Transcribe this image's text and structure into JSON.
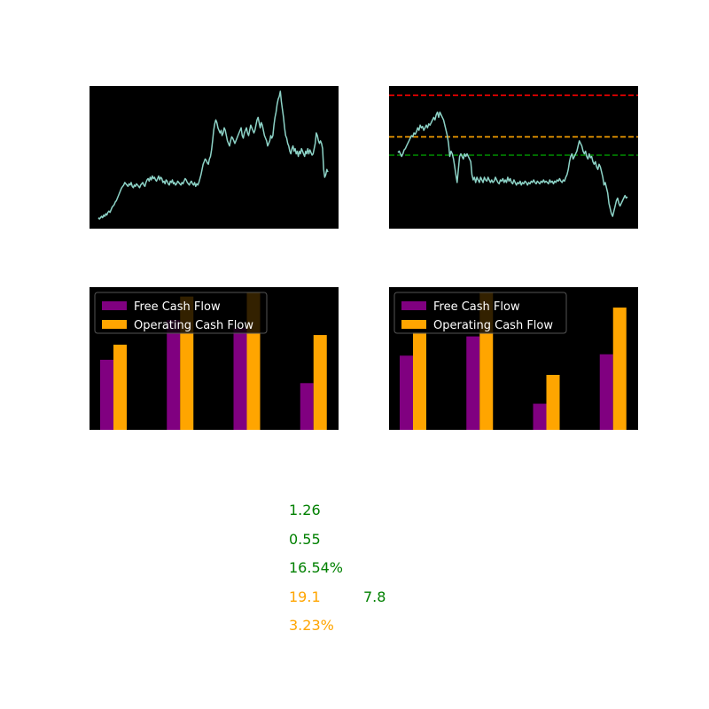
{
  "colors": {
    "panel_background": "#000000",
    "price_line": "#8dd3c7",
    "free_cash_flow": "#800080",
    "operating_cash_flow": "#ffa500",
    "ref_red": "#ff0000",
    "ref_orange": "#ffa500",
    "ref_green": "#008000",
    "good": "#008000",
    "warn": "#ffa500"
  },
  "chart_data": [
    {
      "type": "line",
      "name": "price-history",
      "title": "",
      "xlabel": "",
      "ylabel": "",
      "ylim": [
        0,
        100
      ],
      "grid": false,
      "values": [
        3,
        2,
        3,
        4,
        3,
        5,
        4,
        6,
        5,
        7,
        8,
        7,
        9,
        11,
        12,
        13,
        15,
        16,
        18,
        20,
        22,
        24,
        26,
        27,
        28,
        30,
        29,
        28,
        27,
        29,
        28,
        30,
        27,
        26,
        28,
        27,
        29,
        28,
        27,
        26,
        28,
        29,
        30,
        28,
        27,
        30,
        32,
        33,
        31,
        34,
        32,
        35,
        33,
        34,
        32,
        31,
        33,
        35,
        32,
        34,
        33,
        30,
        31,
        29,
        32,
        31,
        29,
        28,
        31,
        30,
        32,
        29,
        30,
        28,
        29,
        31,
        30,
        29,
        28,
        30,
        29,
        31,
        33,
        32,
        30,
        29,
        28,
        30,
        31,
        29,
        28,
        30,
        27,
        29,
        28,
        30,
        33,
        36,
        40,
        44,
        46,
        48,
        47,
        45,
        44,
        48,
        50,
        55,
        62,
        70,
        75,
        78,
        76,
        72,
        70,
        68,
        70,
        66,
        68,
        72,
        70,
        66,
        62,
        60,
        58,
        62,
        65,
        64,
        62,
        60,
        62,
        64,
        66,
        68,
        70,
        72,
        66,
        64,
        68,
        70,
        72,
        68,
        66,
        70,
        74,
        72,
        70,
        68,
        70,
        74,
        78,
        80,
        76,
        72,
        76,
        74,
        70,
        66,
        64,
        62,
        58,
        60,
        62,
        66,
        64,
        66,
        74,
        80,
        84,
        90,
        94,
        96,
        100,
        92,
        86,
        80,
        72,
        66,
        64,
        60,
        58,
        54,
        52,
        56,
        58,
        54,
        56,
        52,
        54,
        50,
        54,
        52,
        56,
        54,
        52,
        50,
        54,
        52,
        56,
        52,
        55,
        53,
        51,
        52,
        56,
        60,
        68,
        66,
        62,
        60,
        62,
        60,
        56,
        40,
        34,
        36,
        40,
        38
      ],
      "reference_lines": []
    },
    {
      "type": "line",
      "name": "recent-price-with-levels",
      "title": "",
      "xlabel": "",
      "ylabel": "",
      "ylim": [
        0,
        100
      ],
      "grid": false,
      "values": [
        53,
        54,
        52,
        50,
        52,
        55,
        56,
        58,
        60,
        62,
        64,
        66,
        65,
        68,
        67,
        69,
        72,
        70,
        74,
        72,
        73,
        70,
        72,
        74,
        72,
        75,
        74,
        76,
        78,
        80,
        78,
        82,
        84,
        80,
        84,
        82,
        80,
        78,
        74,
        70,
        66,
        60,
        50,
        54,
        52,
        48,
        42,
        36,
        30,
        40,
        50,
        52,
        50,
        48,
        52,
        50,
        52,
        50,
        48,
        46,
        36,
        32,
        34,
        30,
        34,
        32,
        30,
        34,
        32,
        30,
        34,
        32,
        31,
        34,
        32,
        30,
        32,
        30,
        31,
        34,
        32,
        30,
        29,
        32,
        31,
        33,
        30,
        32,
        30,
        34,
        31,
        33,
        30,
        29,
        32,
        30,
        28,
        30,
        29,
        31,
        28,
        30,
        29,
        31,
        30,
        28,
        30,
        29,
        31,
        30,
        32,
        30,
        29,
        31,
        30,
        29,
        31,
        30,
        32,
        30,
        31,
        30,
        29,
        32,
        30,
        31,
        29,
        31,
        30,
        32,
        31,
        33,
        31,
        30,
        32,
        31,
        34,
        36,
        40,
        46,
        50,
        52,
        48,
        50,
        52,
        54,
        58,
        62,
        60,
        58,
        54,
        52,
        54,
        50,
        48,
        52,
        49,
        50,
        46,
        44,
        46,
        42,
        40,
        44,
        42,
        38,
        34,
        28,
        30,
        26,
        22,
        14,
        10,
        6,
        4,
        8,
        12,
        16,
        18,
        14,
        12,
        14,
        16,
        18,
        20,
        18,
        19
      ],
      "reference_lines": [
        {
          "value": 97,
          "color": "#ff0000",
          "style": "dashed"
        },
        {
          "value": 65,
          "color": "#ffa500",
          "style": "dashed"
        },
        {
          "value": 51,
          "color": "#008000",
          "style": "dashed"
        }
      ]
    },
    {
      "type": "bar",
      "name": "cash-flow-1",
      "title": "",
      "xlabel": "",
      "ylabel": "",
      "ylim": [
        0,
        100
      ],
      "grid": false,
      "legend": "top-left",
      "categories": [
        "",
        "",
        "",
        ""
      ],
      "series": [
        {
          "name": "Free Cash Flow",
          "color": "#800080",
          "values": [
            51,
            80,
            74,
            34
          ]
        },
        {
          "name": "Operating Cash Flow",
          "color": "#ffa500",
          "values": [
            62,
            97,
            100,
            69
          ]
        }
      ]
    },
    {
      "type": "bar",
      "name": "cash-flow-2",
      "title": "",
      "xlabel": "",
      "ylabel": "",
      "ylim": [
        0,
        100
      ],
      "grid": false,
      "legend": "top-left",
      "categories": [
        "",
        "",
        "",
        ""
      ],
      "series": [
        {
          "name": "Free Cash Flow",
          "color": "#800080",
          "values": [
            54,
            68,
            19,
            55
          ]
        },
        {
          "name": "Operating Cash Flow",
          "color": "#ffa500",
          "values": [
            71,
            100,
            40,
            89
          ]
        }
      ]
    }
  ],
  "metrics": [
    {
      "text": "1.26",
      "color": "#008000"
    },
    {
      "text": "0.55",
      "color": "#008000"
    },
    {
      "text": "16.54%",
      "color": "#008000"
    },
    {
      "text": "19.1",
      "color": "#ffa500"
    },
    {
      "text": "7.8",
      "color": "#008000"
    },
    {
      "text": "3.23%",
      "color": "#ffa500"
    }
  ]
}
